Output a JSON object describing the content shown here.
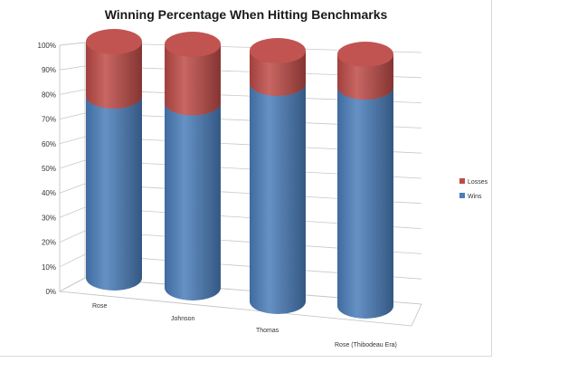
{
  "chart_data": {
    "type": "bar",
    "style": "3d-stacked-cylinder",
    "title": "Winning Percentage When Hitting Benchmarks",
    "categories": [
      "Rose",
      "Johnson",
      "Thomas",
      "Rose (Thibodeau Era)"
    ],
    "series": [
      {
        "name": "Wins",
        "color": "#4a7ebb",
        "values": [
          77,
          76,
          87,
          87
        ]
      },
      {
        "name": "Losses",
        "color": "#be4b48",
        "values": [
          23,
          24,
          13,
          13
        ]
      }
    ],
    "ylim": [
      0,
      100
    ],
    "yticks": [
      "0%",
      "10%",
      "20%",
      "30%",
      "40%",
      "50%",
      "60%",
      "70%",
      "80%",
      "90%",
      "100%"
    ],
    "grid": true,
    "legend": "right"
  }
}
